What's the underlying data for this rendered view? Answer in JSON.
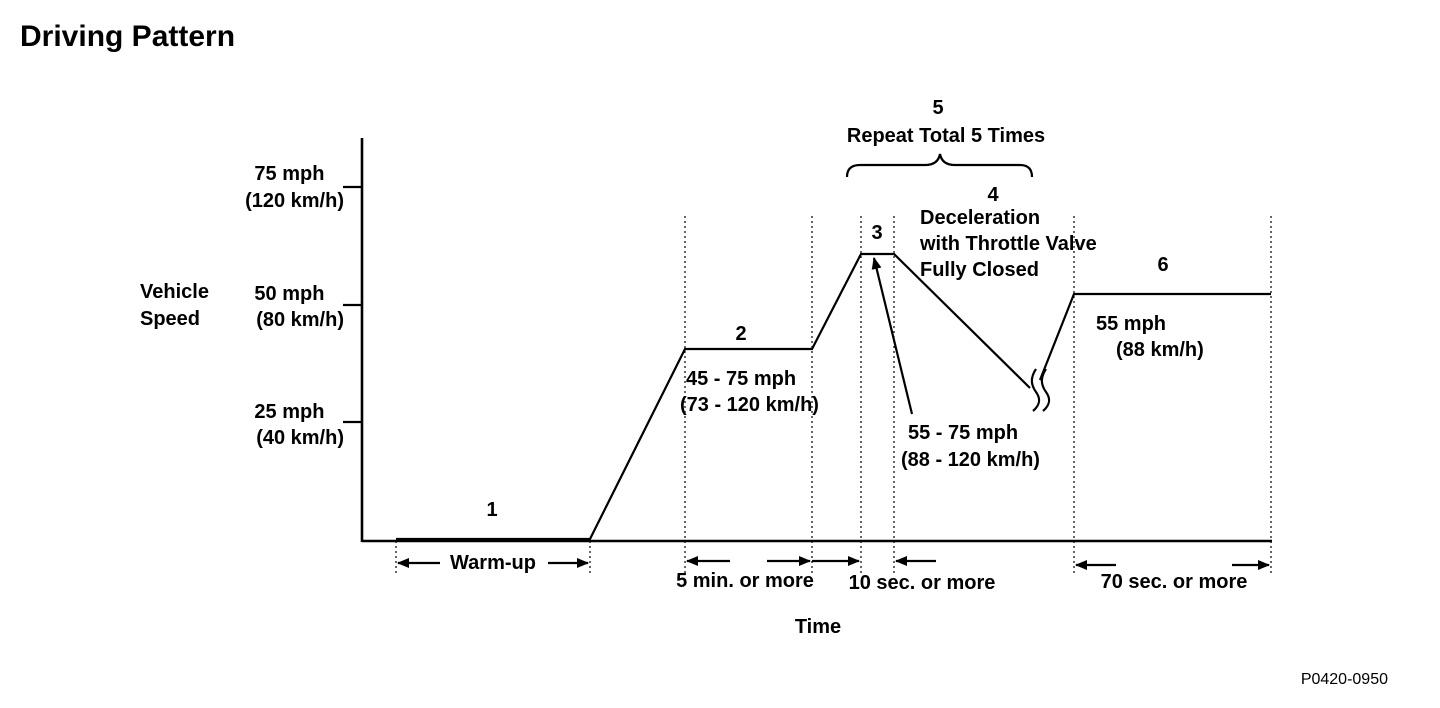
{
  "title": "Driving Pattern",
  "y_axis": {
    "label_line1": "Vehicle",
    "label_line2": "Speed",
    "ticks": [
      {
        "line1": "75 mph",
        "line2": "(120 km/h)"
      },
      {
        "line1": "50 mph",
        "line2": "(80 km/h)"
      },
      {
        "line1": "25 mph",
        "line2": "(40 km/h)"
      }
    ]
  },
  "x_axis": {
    "label": "Time"
  },
  "steps": [
    {
      "number": "1"
    },
    {
      "number": "2",
      "range_line1": "45 - 75 mph",
      "range_line2": "(73 - 120 km/h)"
    },
    {
      "number": "3"
    },
    {
      "number": "4",
      "desc_line1": "Deceleration",
      "desc_line2": "with Throttle Valve",
      "desc_line3": "Fully Closed"
    },
    {
      "number": "5",
      "desc": "Repeat Total 5 Times"
    },
    {
      "number": "6",
      "speed_line1": "55 mph",
      "speed_line2": "(88 km/h)"
    }
  ],
  "callout": {
    "line1": "55 - 75 mph",
    "line2": "(88 - 120 km/h)"
  },
  "durations": {
    "warmup": "Warm-up",
    "step2": "5 min. or more",
    "step3": "10 sec. or more",
    "step6": "70 sec. or more"
  },
  "figure_code": "P0420-0950"
}
